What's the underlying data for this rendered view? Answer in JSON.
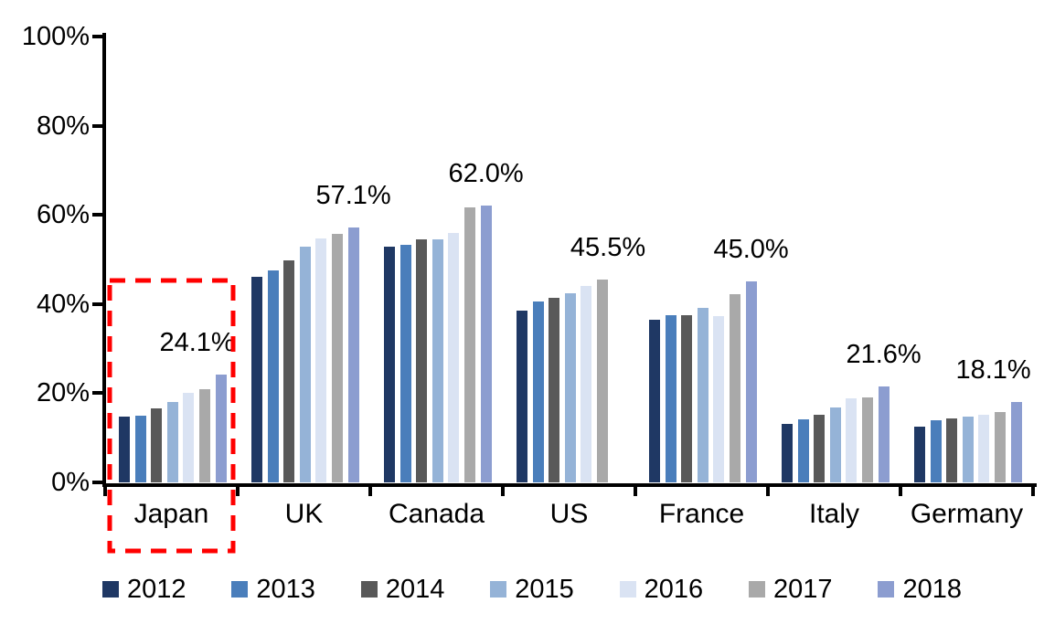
{
  "chart_data": {
    "type": "bar",
    "title": "",
    "xlabel": "",
    "ylabel": "",
    "categories": [
      "Japan",
      "UK",
      "Canada",
      "US",
      "France",
      "Italy",
      "Germany"
    ],
    "series": [
      {
        "name": "2012",
        "color": "#1F3864",
        "values": [
          14.7,
          46.2,
          52.9,
          38.6,
          36.5,
          13.2,
          12.5
        ]
      },
      {
        "name": "2013",
        "color": "#4A7EBB",
        "values": [
          15.0,
          47.5,
          53.2,
          40.5,
          37.6,
          14.1,
          14.0
        ]
      },
      {
        "name": "2014",
        "color": "#595959",
        "values": [
          16.5,
          49.7,
          54.6,
          41.4,
          37.6,
          15.2,
          14.3
        ]
      },
      {
        "name": "2015",
        "color": "#95B3D7",
        "values": [
          18.0,
          52.9,
          54.5,
          42.4,
          39.2,
          16.8,
          14.8
        ]
      },
      {
        "name": "2016",
        "color": "#DAE3F3",
        "values": [
          20.0,
          54.7,
          56.0,
          44.0,
          37.3,
          18.8,
          15.2
        ]
      },
      {
        "name": "2017",
        "color": "#A9A9A9",
        "values": [
          21.0,
          55.7,
          61.6,
          45.5,
          42.3,
          19.0,
          15.8
        ]
      },
      {
        "name": "2018",
        "color": "#8C9DD0",
        "values": [
          24.1,
          57.1,
          62.0,
          null,
          45.0,
          21.6,
          18.1
        ]
      }
    ],
    "peak_labels": [
      "24.1%",
      "57.1%",
      "62.0%",
      "45.5%",
      "45.0%",
      "21.6%",
      "18.1%"
    ],
    "peak_values": [
      24.1,
      57.1,
      62.0,
      45.5,
      45.0,
      21.6,
      18.1
    ],
    "y_tick_labels": [
      "0%",
      "20%",
      "40%",
      "60%",
      "80%",
      "100%"
    ],
    "y_tick_values": [
      0,
      20,
      40,
      60,
      80,
      100
    ],
    "ylim": [
      0,
      100
    ],
    "grid": "off",
    "legend_position": "bottom",
    "legend_entries": [
      "2012",
      "2013",
      "2014",
      "2015",
      "2016",
      "2017",
      "2018"
    ],
    "annotation": {
      "type": "dashed-box",
      "highlighted_category": "Japan",
      "color": "#FF0000"
    },
    "axis_color": "#000000",
    "label_dx": [
      -26,
      0,
      0,
      6,
      0,
      0,
      -25
    ]
  }
}
